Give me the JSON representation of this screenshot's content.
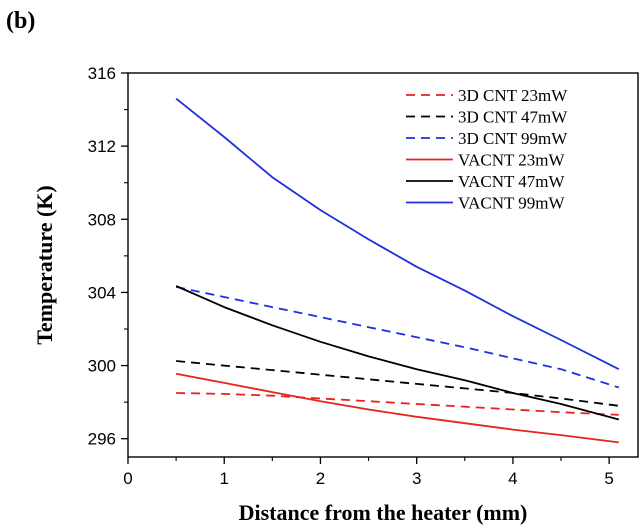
{
  "chart_data": {
    "type": "line",
    "panel_label": "(b)",
    "xlabel": "Distance from the heater (mm)",
    "ylabel": "Temperature (K)",
    "xlim": [
      0,
      5.3
    ],
    "ylim": [
      295,
      316
    ],
    "x_ticks": [
      0,
      1,
      2,
      3,
      4,
      5
    ],
    "y_ticks": [
      296,
      300,
      304,
      308,
      312,
      316
    ],
    "legend_position": "top-right",
    "series": [
      {
        "name": "3D CNT 23mW",
        "color": "#e8231e",
        "dash": true,
        "x": [
          0.5,
          1,
          1.5,
          2,
          2.5,
          3,
          3.5,
          4,
          4.5,
          5.1
        ],
        "y": [
          298.5,
          298.45,
          298.35,
          298.2,
          298.05,
          297.9,
          297.75,
          297.6,
          297.45,
          297.3
        ]
      },
      {
        "name": "3D CNT 47mW",
        "color": "#000000",
        "dash": true,
        "x": [
          0.5,
          1,
          1.5,
          2,
          2.5,
          3,
          3.5,
          4,
          4.5,
          5.1
        ],
        "y": [
          300.25,
          300.0,
          299.75,
          299.5,
          299.25,
          299.0,
          298.75,
          298.5,
          298.2,
          297.8
        ]
      },
      {
        "name": "3D CNT 99mW",
        "color": "#1f2fe0",
        "dash": true,
        "x": [
          0.5,
          1,
          1.5,
          2,
          2.5,
          3,
          3.5,
          4,
          4.5,
          5.1
        ],
        "y": [
          304.3,
          303.75,
          303.2,
          302.65,
          302.1,
          301.55,
          301.0,
          300.4,
          299.8,
          298.8
        ]
      },
      {
        "name": "VACNT 23mW",
        "color": "#e8231e",
        "dash": false,
        "x": [
          0.5,
          1,
          1.5,
          2,
          2.5,
          3,
          3.5,
          4,
          4.5,
          5.1
        ],
        "y": [
          299.55,
          299.05,
          298.55,
          298.05,
          297.6,
          297.2,
          296.85,
          296.5,
          296.2,
          295.8
        ]
      },
      {
        "name": "VACNT 47mW",
        "color": "#000000",
        "dash": false,
        "x": [
          0.5,
          1,
          1.5,
          2,
          2.5,
          3,
          3.5,
          4,
          4.5,
          5.1
        ],
        "y": [
          304.35,
          303.2,
          302.2,
          301.3,
          300.5,
          299.8,
          299.2,
          298.5,
          297.9,
          297.05
        ]
      },
      {
        "name": "VACNT 99mW",
        "color": "#1f2fe0",
        "dash": false,
        "x": [
          0.5,
          1,
          1.5,
          2,
          2.5,
          3,
          3.5,
          4,
          4.5,
          5.1
        ],
        "y": [
          314.6,
          312.5,
          310.3,
          308.5,
          306.9,
          305.4,
          304.1,
          302.7,
          301.4,
          299.8
        ]
      }
    ]
  }
}
